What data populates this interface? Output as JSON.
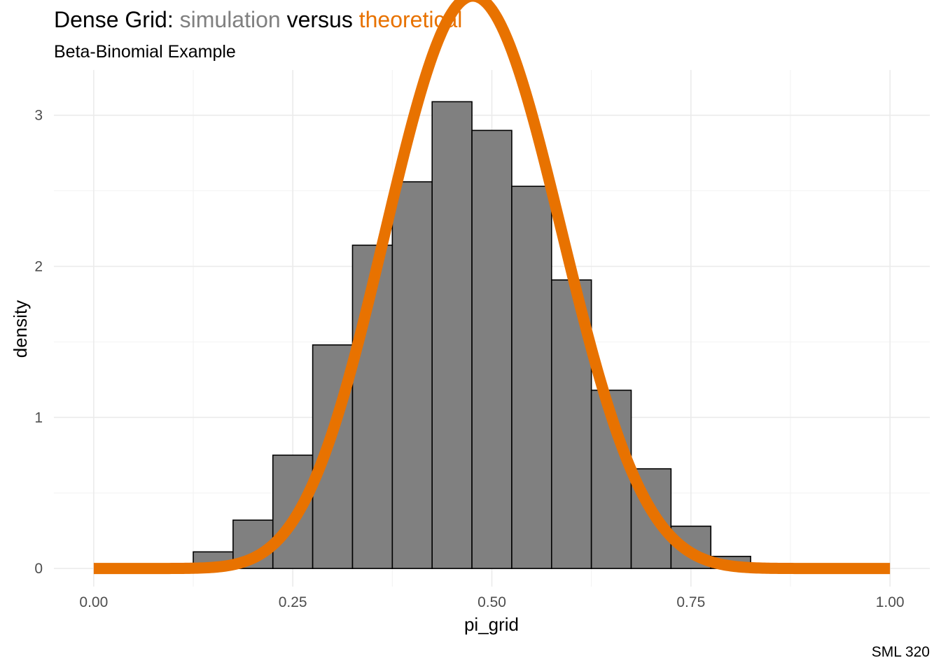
{
  "chart_data": {
    "type": "bar",
    "title": {
      "prefix": "Dense Grid: ",
      "part1": "simulation",
      "middle": " versus ",
      "part2": "theoretical",
      "part1_color": "#808080",
      "part2_color": "#E87200"
    },
    "subtitle": "Beta-Binomial Example",
    "caption": "SML 320",
    "xlabel": "pi_grid",
    "ylabel": "density",
    "xlim": [
      -0.05,
      1.05
    ],
    "ylim": [
      -0.12,
      3.3
    ],
    "x_ticks": [
      0.0,
      0.25,
      0.5,
      0.75,
      1.0
    ],
    "x_tick_labels": [
      "0.00",
      "0.25",
      "0.50",
      "0.75",
      "1.00"
    ],
    "y_ticks": [
      0,
      1,
      2,
      3
    ],
    "y_tick_labels": [
      "0",
      "1",
      "2",
      "3"
    ],
    "grid": true,
    "histogram": {
      "name": "simulation",
      "fill": "#808080",
      "stroke": "#000000",
      "bin_width": 0.05,
      "bins": [
        {
          "x0": 0.125,
          "x1": 0.175,
          "density": 0.11
        },
        {
          "x0": 0.175,
          "x1": 0.225,
          "density": 0.32
        },
        {
          "x0": 0.225,
          "x1": 0.275,
          "density": 0.75
        },
        {
          "x0": 0.275,
          "x1": 0.325,
          "density": 1.48
        },
        {
          "x0": 0.325,
          "x1": 0.375,
          "density": 2.14
        },
        {
          "x0": 0.375,
          "x1": 0.425,
          "density": 2.56
        },
        {
          "x0": 0.425,
          "x1": 0.475,
          "density": 3.09
        },
        {
          "x0": 0.475,
          "x1": 0.525,
          "density": 2.9
        },
        {
          "x0": 0.525,
          "x1": 0.575,
          "density": 2.53
        },
        {
          "x0": 0.575,
          "x1": 0.625,
          "density": 1.91
        },
        {
          "x0": 0.625,
          "x1": 0.675,
          "density": 1.18
        },
        {
          "x0": 0.675,
          "x1": 0.725,
          "density": 0.66
        },
        {
          "x0": 0.725,
          "x1": 0.775,
          "density": 0.28
        },
        {
          "x0": 0.775,
          "x1": 0.825,
          "density": 0.08
        }
      ]
    },
    "curve": {
      "name": "theoretical",
      "color": "#E87200",
      "distribution": "beta",
      "alpha": 11,
      "beta": 12
    }
  }
}
